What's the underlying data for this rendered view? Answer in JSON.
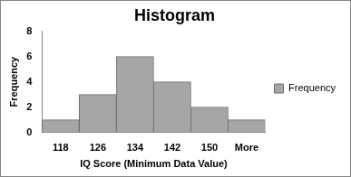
{
  "chart_data": {
    "type": "bar",
    "title": "Histogram",
    "x_label": "IQ Score (Minimum Data Value)",
    "y_label": "Frequency",
    "categories": [
      "118",
      "126",
      "134",
      "142",
      "150",
      "More"
    ],
    "series": [
      {
        "name": "Frequency",
        "color": "#a6a6a6",
        "values": [
          1,
          3,
          6,
          4,
          2,
          1
        ]
      }
    ],
    "ylim": [
      0,
      8
    ],
    "yticks": [
      0,
      2,
      4,
      6,
      8
    ],
    "grid": false,
    "legend": "right"
  }
}
